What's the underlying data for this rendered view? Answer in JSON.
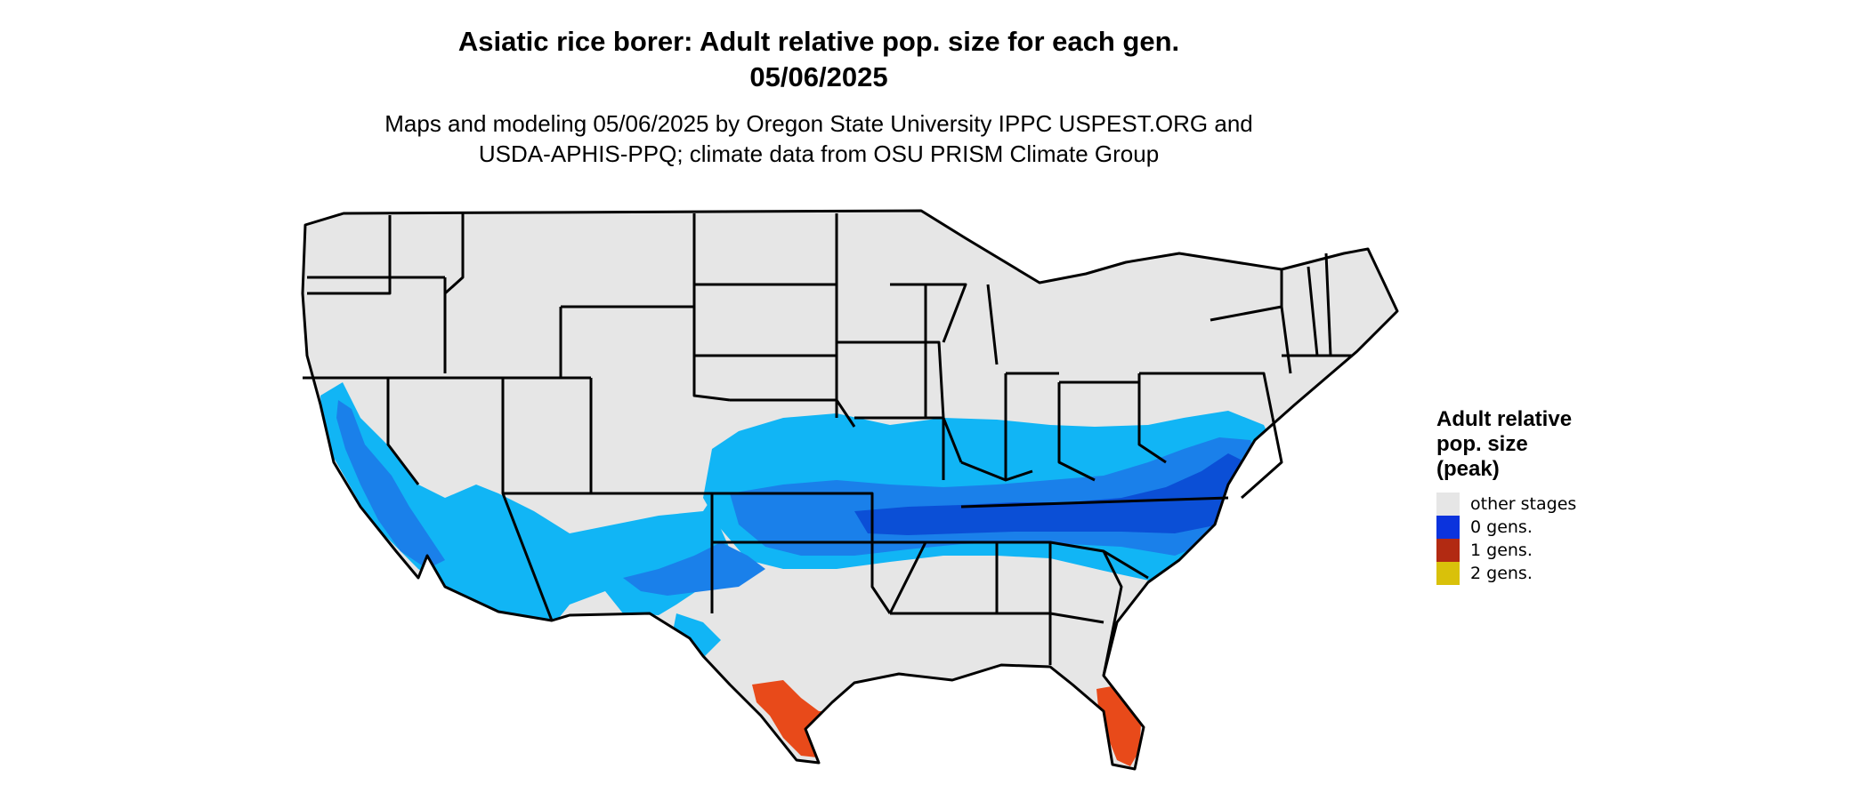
{
  "header": {
    "title_line1": "Asiatic rice borer: Adult relative pop. size for each gen.",
    "title_line2": "05/06/2025",
    "subtitle_line1": "Maps and modeling 05/06/2025 by Oregon State University IPPC USPEST.ORG and",
    "subtitle_line2": "USDA-APHIS-PPQ; climate data from OSU PRISM Climate Group"
  },
  "legend": {
    "title_line1": "Adult relative",
    "title_line2": "pop. size",
    "title_line3": "(peak)",
    "items": [
      {
        "label": "other stages",
        "color": "#e6e6e6"
      },
      {
        "label": "0 gens.",
        "color": "#0b33dd"
      },
      {
        "label": "1 gens.",
        "color": "#b22a12"
      },
      {
        "label": "2 gens.",
        "color": "#d9c10a"
      }
    ]
  },
  "colors": {
    "land": "#e6e6e6",
    "light_blue": "#11b5f5",
    "mid_blue": "#1a80ea",
    "dark_blue": "#0b4fd6",
    "orange_red": "#e84a1a",
    "state_border": "#000000"
  }
}
